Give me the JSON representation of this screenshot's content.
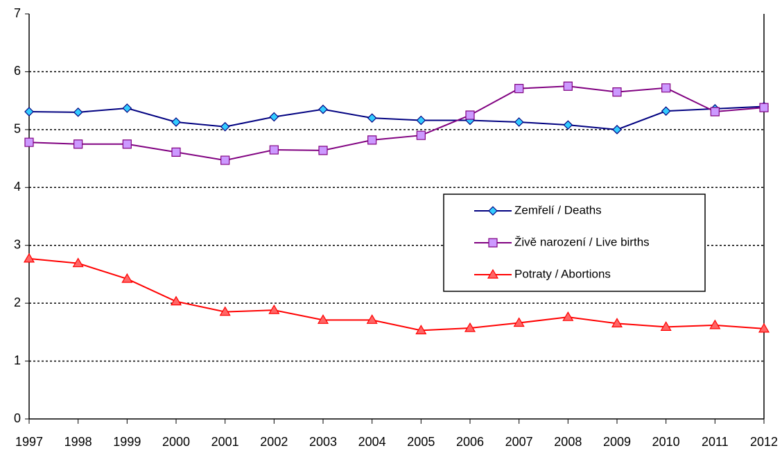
{
  "chart_data": {
    "type": "line",
    "x": [
      1997,
      1998,
      1999,
      2000,
      2001,
      2002,
      2003,
      2004,
      2005,
      2006,
      2007,
      2008,
      2009,
      2010,
      2011,
      2012
    ],
    "xlim": [
      1997,
      2012
    ],
    "xticks": [
      1997,
      1998,
      1999,
      2000,
      2001,
      2002,
      2003,
      2004,
      2005,
      2006,
      2007,
      2008,
      2009,
      2010,
      2011,
      2012
    ],
    "ylim": [
      0,
      7
    ],
    "yticks": [
      0,
      1,
      2,
      3,
      4,
      5,
      6,
      7
    ],
    "grid": true,
    "legend": "right",
    "series": [
      {
        "name": "Zemřelí / Deaths",
        "color": "#000080",
        "marker": "diamond",
        "marker_color": "#33ccff",
        "values": [
          5.31,
          5.3,
          5.37,
          5.13,
          5.05,
          5.22,
          5.35,
          5.2,
          5.16,
          5.16,
          5.13,
          5.08,
          5.0,
          5.32,
          5.36,
          5.4
        ]
      },
      {
        "name": "Živě narození / Live births",
        "color": "#800080",
        "marker": "square",
        "marker_color": "#cc99ff",
        "values": [
          4.78,
          4.75,
          4.75,
          4.61,
          4.47,
          4.65,
          4.64,
          4.82,
          4.9,
          5.25,
          5.71,
          5.75,
          5.65,
          5.72,
          5.31,
          5.38
        ]
      },
      {
        "name": "Potraty / Abortions",
        "color": "#ff0000",
        "marker": "triangle",
        "marker_color": "#ff6666",
        "values": [
          2.77,
          2.69,
          2.42,
          2.03,
          1.85,
          1.88,
          1.71,
          1.71,
          1.53,
          1.57,
          1.66,
          1.76,
          1.65,
          1.59,
          1.62,
          1.56
        ]
      }
    ]
  }
}
